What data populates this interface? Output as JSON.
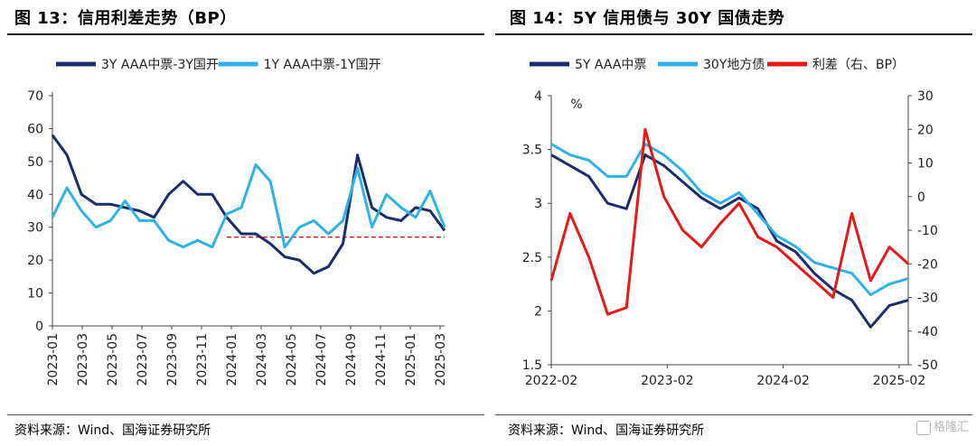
{
  "left": {
    "title": "图 13：信用利差走势（BP）",
    "source": "资料来源：Wind、国海证券研究所",
    "chart_data": {
      "type": "line",
      "ylim": [
        0,
        70
      ],
      "yticks": [
        "0",
        "10",
        "20",
        "30",
        "40",
        "50",
        "60",
        "70"
      ],
      "xticks": [
        "2023-01",
        "2023-03",
        "2023-05",
        "2023-07",
        "2023-09",
        "2023-11",
        "2024-01",
        "2024-03",
        "2024-05",
        "2024-07",
        "2024-09",
        "2024-11",
        "2025-01",
        "2025-03"
      ],
      "x": [
        "2023-01",
        "2023-02",
        "2023-03",
        "2023-04",
        "2023-05",
        "2023-06",
        "2023-07",
        "2023-08",
        "2023-09",
        "2023-10",
        "2023-11",
        "2023-12",
        "2024-01",
        "2024-02",
        "2024-03",
        "2024-04",
        "2024-05",
        "2024-06",
        "2024-07",
        "2024-08",
        "2024-09",
        "2024-10",
        "2024-11",
        "2024-12",
        "2025-01",
        "2025-02",
        "2025-03",
        "2025-04"
      ],
      "series": [
        {
          "name": "3Y AAA中票-3Y国开",
          "color": "#1a2d6b",
          "values": [
            58,
            52,
            40,
            37,
            37,
            36,
            35,
            33,
            40,
            44,
            40,
            40,
            33,
            28,
            28,
            25,
            21,
            20,
            16,
            18,
            25,
            52,
            36,
            33,
            32,
            36,
            35,
            29
          ]
        },
        {
          "name": "1Y AAA中票-1Y国开",
          "color": "#2eb2e8",
          "values": [
            33,
            42,
            35,
            30,
            32,
            38,
            32,
            32,
            26,
            24,
            26,
            24,
            34,
            36,
            49,
            44,
            24,
            30,
            32,
            28,
            32,
            48,
            30,
            40,
            36,
            33,
            41,
            30
          ]
        }
      ],
      "reference_line": {
        "value": 27,
        "color": "#e02020"
      }
    }
  },
  "right": {
    "title": "图 14：5Y 信用债与 30Y 国债走势",
    "source": "资料来源：Wind、国海证券研究所",
    "watermark": "格隆汇",
    "chart_data": {
      "type": "line",
      "unit_label": "%",
      "ylim_left": [
        1.5,
        4
      ],
      "ylim_right": [
        -50,
        30
      ],
      "yticks_left": [
        "1.5",
        "2",
        "2.5",
        "3",
        "3.5",
        "4"
      ],
      "yticks_right": [
        "-50",
        "-40",
        "-30",
        "-20",
        "-10",
        "0",
        "10",
        "20",
        "30"
      ],
      "xticks": [
        "2022-02",
        "2023-02",
        "2024-02",
        "2025-02"
      ],
      "x": [
        "2022-02",
        "2022-04",
        "2022-06",
        "2022-08",
        "2022-10",
        "2022-12",
        "2023-02",
        "2023-04",
        "2023-06",
        "2023-08",
        "2023-10",
        "2023-12",
        "2024-02",
        "2024-04",
        "2024-06",
        "2024-08",
        "2024-10",
        "2024-12",
        "2025-02",
        "2025-03"
      ],
      "series": [
        {
          "name": "5Y AAA中票",
          "axis": "left",
          "color": "#1a2d6b",
          "values": [
            3.45,
            3.35,
            3.25,
            3.0,
            2.95,
            3.45,
            3.35,
            3.2,
            3.05,
            2.95,
            3.05,
            2.95,
            2.65,
            2.55,
            2.35,
            2.2,
            2.1,
            1.85,
            2.05,
            2.1
          ]
        },
        {
          "name": "30Y地方债",
          "axis": "left",
          "color": "#2eb2e8",
          "values": [
            3.55,
            3.45,
            3.4,
            3.25,
            3.25,
            3.55,
            3.45,
            3.3,
            3.1,
            3.0,
            3.1,
            2.9,
            2.7,
            2.6,
            2.45,
            2.4,
            2.35,
            2.15,
            2.25,
            2.3
          ]
        },
        {
          "name": "利差（右、BP）",
          "axis": "right",
          "color": "#e81818",
          "values": [
            -25,
            -5,
            -18,
            -35,
            -33,
            20,
            0,
            -10,
            -15,
            -8,
            -2,
            -12,
            -15,
            -20,
            -25,
            -30,
            -5,
            -25,
            -15,
            -20
          ]
        }
      ]
    }
  }
}
